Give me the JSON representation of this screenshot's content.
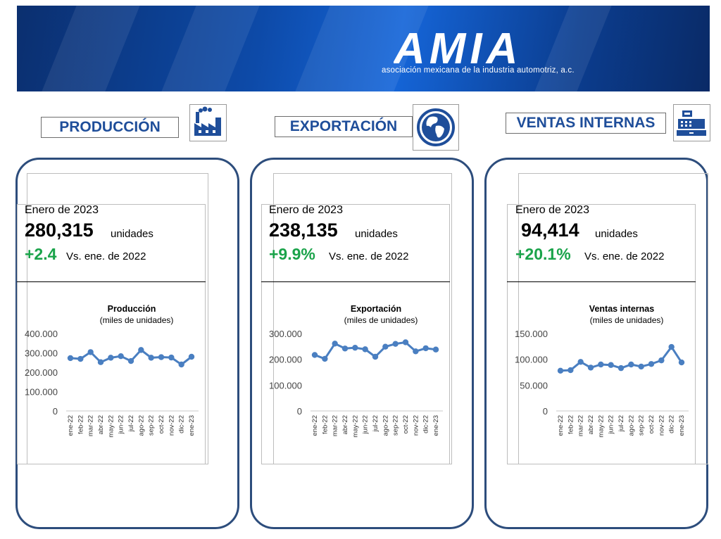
{
  "banner": {
    "logo_text": "AMIA",
    "tagline": "asociación mexicana de la industria automotriz, a.c."
  },
  "sections": [
    {
      "title": "PRODUCCIÓN",
      "icon": "factory-icon",
      "period": "Enero de 2023",
      "value": "280,315",
      "unit": "unidades",
      "change": "+2.4",
      "compare": "Vs. ene. de 2022"
    },
    {
      "title": "EXPORTACIÓN",
      "icon": "globe-icon",
      "period": "Enero de 2023",
      "value": "238,135",
      "unit": "unidades",
      "change": "+9.9%",
      "compare": "Vs. ene. de 2022"
    },
    {
      "title": "VENTAS INTERNAS",
      "icon": "cash-register-icon",
      "period": "Enero de 2023",
      "value": "94,414",
      "unit": "unidades",
      "change": "+20.1%",
      "compare": "Vs. ene. de 2022"
    }
  ],
  "colors": {
    "brand_blue": "#1f4e9a",
    "positive_green": "#1aa34a",
    "series_blue": "#4a7fc1"
  },
  "chart_data": [
    {
      "type": "line",
      "title": "Producción",
      "subtitle": "(miles de unidades)",
      "categories": [
        "ene-22",
        "feb-22",
        "mar-22",
        "abr-22",
        "may-22",
        "jun-22",
        "jul-22",
        "ago-22",
        "sep-22",
        "oct-22",
        "nov-22",
        "dic-22",
        "ene-23"
      ],
      "values": [
        273,
        269,
        304,
        252,
        275,
        283,
        258,
        315,
        275,
        278,
        276,
        240,
        280
      ],
      "ylim": [
        0,
        400
      ],
      "yticks": [
        "0",
        "100.000",
        "200.000",
        "300.000",
        "400.000"
      ],
      "ytick_values": [
        0,
        100,
        200,
        300,
        400
      ]
    },
    {
      "type": "line",
      "title": "Exportación",
      "subtitle": "(miles de unidades)",
      "categories": [
        "ene-22",
        "feb-22",
        "mar-22",
        "abr-22",
        "may-22",
        "jun-22",
        "jul-22",
        "ago-22",
        "sep-22",
        "oct-22",
        "nov-22",
        "dic-22",
        "ene-23"
      ],
      "values": [
        217,
        202,
        261,
        242,
        245,
        239,
        210,
        249,
        260,
        266,
        231,
        243,
        238
      ],
      "ylim": [
        0,
        300
      ],
      "yticks": [
        "0",
        "100.000",
        "200.000",
        "300.000"
      ],
      "ytick_values": [
        0,
        100,
        200,
        300
      ]
    },
    {
      "type": "line",
      "title": "Ventas internas",
      "subtitle": "(miles de unidades)",
      "categories": [
        "ene-22",
        "feb-22",
        "mar-22",
        "abr-22",
        "may-22",
        "jun-22",
        "jul-22",
        "ago-22",
        "sep-22",
        "oct-22",
        "nov-22",
        "dic-22",
        "ene-23"
      ],
      "values": [
        78,
        79,
        95,
        84,
        90,
        89,
        83,
        90,
        86,
        91,
        98,
        124,
        94
      ],
      "ylim": [
        0,
        150
      ],
      "yticks": [
        "0",
        "50.000",
        "100.000",
        "150.000"
      ],
      "ytick_values": [
        0,
        50,
        100,
        150
      ]
    }
  ]
}
